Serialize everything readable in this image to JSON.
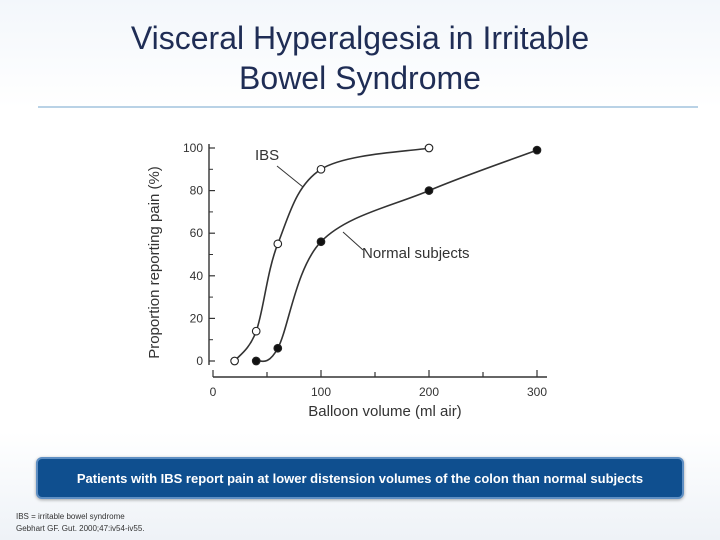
{
  "slide": {
    "title_line1": "Visceral Hyperalgesia in Irritable",
    "title_line2": "Bowel Syndrome",
    "callout": "Patients with IBS report pain at lower distension volumes of the colon than normal subjects",
    "footnote_line1": "IBS = irritable bowel syndrome",
    "footnote_line2": "Gebhart GF. Gut. 2000;47:iv54-iv55."
  },
  "colors": {
    "title": "#1f2d55",
    "callout_bg": "#0f4f8f",
    "line": "#333333"
  },
  "chart_data": {
    "type": "line",
    "xlabel": "Balloon volume (ml air)",
    "ylabel": "Proportion reporting pain (%)",
    "xlim": [
      0,
      300
    ],
    "ylim": [
      0,
      100
    ],
    "x_ticks": [
      "0",
      "100",
      "200",
      "300"
    ],
    "y_ticks": [
      "0",
      "20",
      "40",
      "60",
      "80",
      "100"
    ],
    "series": [
      {
        "name": "IBS",
        "marker": "open-circle",
        "points": [
          [
            20,
            0
          ],
          [
            40,
            14
          ],
          [
            60,
            55
          ],
          [
            100,
            90
          ],
          [
            200,
            100
          ]
        ]
      },
      {
        "name": "Normal subjects",
        "marker": "filled-circle",
        "points": [
          [
            40,
            0
          ],
          [
            60,
            6
          ],
          [
            100,
            56
          ],
          [
            200,
            80
          ],
          [
            300,
            99
          ]
        ]
      }
    ],
    "grid": false
  }
}
